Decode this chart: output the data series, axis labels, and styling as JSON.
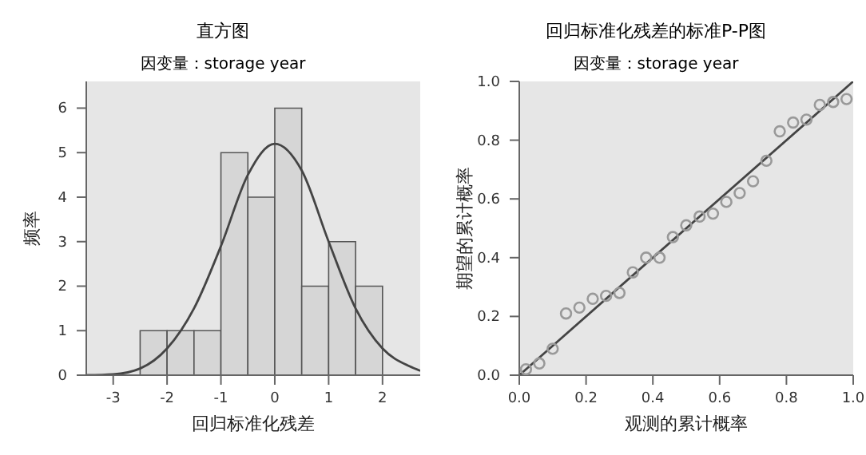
{
  "chart_data": [
    {
      "type": "histogram",
      "title": "直方图",
      "subtitle": "因变量：storage year",
      "xlabel": "回归标准化残差",
      "ylabel": "频率",
      "bins": [
        -2.5,
        -2,
        -1.5,
        -1,
        -0.5,
        0,
        0.5,
        1,
        1.5,
        2
      ],
      "values": [
        1,
        1,
        1,
        5,
        4,
        6,
        2,
        3,
        2
      ],
      "color": "#d6d6d6",
      "xlim": [
        -3.5,
        2.7
      ],
      "ylim": [
        0,
        6.6
      ],
      "xticks": [
        -3,
        -2,
        -1,
        0,
        1,
        2
      ],
      "yticks": [
        0,
        1,
        2,
        3,
        4,
        5,
        6
      ],
      "grid": false,
      "legend": false,
      "series": [
        {
          "type": "line",
          "color": "#444444",
          "marker": "none",
          "x": [
            -3.5,
            -3,
            -2.5,
            -2,
            -1.5,
            -1,
            -0.5,
            0,
            0.5,
            1,
            1.5,
            2,
            2.5,
            2.7
          ],
          "values": [
            0,
            0.02,
            0.15,
            0.6,
            1.5,
            2.9,
            4.5,
            5.2,
            4.6,
            3.0,
            1.5,
            0.6,
            0.2,
            0.1
          ]
        }
      ]
    },
    {
      "type": "scatter",
      "title": "回归标准化残差的标准P-P图",
      "subtitle": "因变量：storage year",
      "xlabel": "观测的累计概率",
      "ylabel": "期望的累计概率",
      "xlim": [
        0,
        1
      ],
      "ylim": [
        0,
        1
      ],
      "xticks": [
        {
          "value": 0,
          "label": "0.0"
        },
        {
          "value": 0.2,
          "label": "0.2"
        },
        {
          "value": 0.4,
          "label": "0.4"
        },
        {
          "value": 0.6,
          "label": "0.6"
        },
        {
          "value": 0.8,
          "label": "0.8"
        },
        {
          "value": 1,
          "label": "1.0"
        }
      ],
      "yticks": [
        {
          "value": 0,
          "label": "0.0"
        },
        {
          "value": 0.2,
          "label": "0.2"
        },
        {
          "value": 0.4,
          "label": "0.4"
        },
        {
          "value": 0.6,
          "label": "0.6"
        },
        {
          "value": 0.8,
          "label": "0.8"
        },
        {
          "value": 1,
          "label": "1.0"
        }
      ],
      "grid": false,
      "legend": false,
      "marker": "circle",
      "x": [
        0.02,
        0.06,
        0.1,
        0.14,
        0.18,
        0.22,
        0.26,
        0.3,
        0.34,
        0.38,
        0.42,
        0.46,
        0.5,
        0.54,
        0.58,
        0.62,
        0.66,
        0.7,
        0.74,
        0.78,
        0.82,
        0.86,
        0.9,
        0.94,
        0.98
      ],
      "values": [
        0.02,
        0.04,
        0.09,
        0.21,
        0.23,
        0.26,
        0.27,
        0.28,
        0.35,
        0.4,
        0.4,
        0.47,
        0.51,
        0.54,
        0.55,
        0.59,
        0.62,
        0.66,
        0.73,
        0.83,
        0.86,
        0.87,
        0.92,
        0.93,
        0.94
      ],
      "color": "#999999",
      "series": [
        {
          "type": "line",
          "color": "#444444",
          "marker": "none",
          "x": [
            0,
            1
          ],
          "values": [
            0,
            1
          ]
        }
      ]
    }
  ]
}
